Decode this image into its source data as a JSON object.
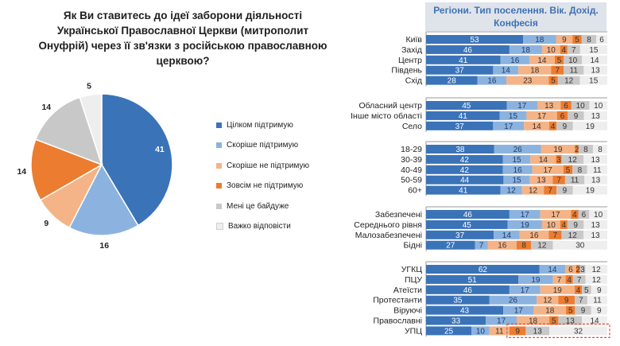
{
  "colors": {
    "full_support": "#3a73b8",
    "rather_support": "#8cb3df",
    "rather_not_support": "#f4b487",
    "not_support": "#ec7c30",
    "indifferent": "#c8c8c8",
    "hard_to_say": "#eeeeee",
    "header_bg": "#dfe3ea",
    "header_text": "#3f72b4",
    "highlight": "#e04a3c"
  },
  "question": "Як Ви ставитесь до ідеї заборони діяльності Української Православної Церкви (митрополит Онуфрій) через її зв'язки з російською православною церквою?",
  "right_header": "Регіони. Тип поселення. Вік. Дохід. Конфесія",
  "chart_data": [
    {
      "type": "pie",
      "title": "Як Ви ставитесь до ідеї заборони діяльності Української Православної Церкви (митрополит Онуфрій) через її зв'язки з російською православною церквою?",
      "categories": [
        "Цілком підтримую",
        "Скоріше підтримую",
        "Скоріше не підтримую",
        "Зовсім не підтримую",
        "Мені це байдуже",
        "Важко відповісти"
      ],
      "values": [
        41,
        16,
        9,
        14,
        14,
        5
      ]
    },
    {
      "type": "bar",
      "orientation": "horizontal-stacked",
      "title": "Регіони. Тип поселення. Вік. Дохід. Конфесія",
      "series_names": [
        "Цілком підтримую",
        "Скоріше підтримую",
        "Скоріше не підтримую",
        "Зовсім не підтримую",
        "Мені це байдуже",
        "Важко відповісти"
      ],
      "xlim": [
        0,
        100
      ],
      "groups": [
        {
          "rows": [
            {
              "label": "Київ",
              "values": [
                53,
                18,
                9,
                5,
                8,
                6
              ]
            },
            {
              "label": "Захід",
              "values": [
                46,
                18,
                10,
                4,
                7,
                15
              ]
            },
            {
              "label": "Центр",
              "values": [
                41,
                16,
                14,
                5,
                10,
                14
              ]
            },
            {
              "label": "Південь",
              "values": [
                37,
                14,
                18,
                7,
                11,
                13
              ]
            },
            {
              "label": "Схід",
              "values": [
                28,
                16,
                23,
                5,
                12,
                15
              ]
            }
          ]
        },
        {
          "rows": [
            {
              "label": "Обласний центр",
              "values": [
                45,
                17,
                13,
                6,
                10,
                10
              ]
            },
            {
              "label": "Інше місто області",
              "values": [
                41,
                15,
                17,
                6,
                9,
                13
              ]
            },
            {
              "label": "Село",
              "values": [
                37,
                17,
                14,
                4,
                9,
                19
              ]
            }
          ]
        },
        {
          "rows": [
            {
              "label": "18-29",
              "values": [
                38,
                26,
                19,
                2,
                8,
                8
              ]
            },
            {
              "label": "30-39",
              "values": [
                42,
                15,
                14,
                3,
                12,
                13
              ]
            },
            {
              "label": "40-49",
              "values": [
                42,
                16,
                17,
                5,
                8,
                11
              ]
            },
            {
              "label": "50-59",
              "values": [
                44,
                15,
                13,
                7,
                11,
                13
              ]
            },
            {
              "label": "60+",
              "values": [
                41,
                12,
                12,
                7,
                9,
                19
              ]
            }
          ]
        },
        {
          "rows": [
            {
              "label": "Забезпечені",
              "values": [
                46,
                17,
                17,
                4,
                6,
                10
              ]
            },
            {
              "label": "Середнього рівня",
              "values": [
                45,
                19,
                10,
                4,
                9,
                13
              ]
            },
            {
              "label": "Малозабезпечені",
              "values": [
                37,
                14,
                16,
                7,
                12,
                13
              ]
            },
            {
              "label": "Бідні",
              "values": [
                27,
                7,
                16,
                8,
                12,
                30
              ]
            }
          ]
        },
        {
          "rows": [
            {
              "label": "УГКЦ",
              "values": [
                62,
                14,
                6,
                2,
                3,
                12
              ]
            },
            {
              "label": "ПЦУ",
              "values": [
                51,
                19,
                7,
                4,
                7,
                12
              ]
            },
            {
              "label": "Атеїсти",
              "values": [
                46,
                17,
                19,
                4,
                5,
                9
              ]
            },
            {
              "label": "Протестанти",
              "values": [
                35,
                26,
                12,
                9,
                7,
                11
              ]
            },
            {
              "label": "Віруючі",
              "values": [
                43,
                17,
                18,
                5,
                9,
                9
              ]
            },
            {
              "label": "Православні",
              "values": [
                33,
                17,
                18,
                5,
                13,
                14
              ]
            },
            {
              "label": "УПЦ",
              "values": [
                25,
                10,
                11,
                9,
                13,
                32
              ]
            }
          ]
        }
      ],
      "highlighted_row": "УПЦ"
    }
  ]
}
